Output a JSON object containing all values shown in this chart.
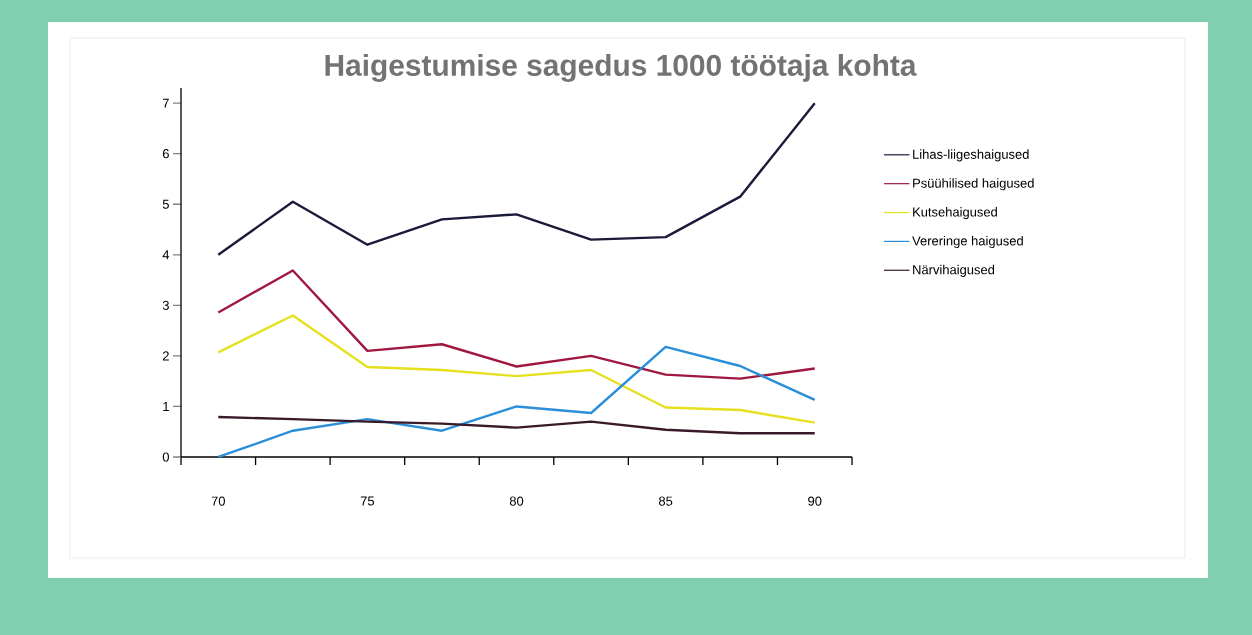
{
  "chart_data": {
    "type": "line",
    "title": "Haigestumise sagedus 1000 töötaja kohta",
    "x": [
      70,
      72.5,
      75,
      77.5,
      80,
      82.5,
      85,
      87.5,
      90
    ],
    "xlim": [
      68.75,
      91.25
    ],
    "xticks": [
      {
        "value": 68.75,
        "label": null
      },
      70,
      {
        "value": 71.25,
        "label": null
      },
      {
        "value": 73.75,
        "label": null
      },
      75,
      {
        "value": 76.25,
        "label": null
      },
      {
        "value": 78.75,
        "label": null
      },
      80,
      {
        "value": 81.25,
        "label": null
      },
      {
        "value": 83.75,
        "label": null
      },
      85,
      {
        "value": 86.25,
        "label": null
      },
      {
        "value": 88.75,
        "label": null
      },
      90,
      {
        "value": 91.25,
        "label": null
      }
    ],
    "ylim": [
      0,
      7.3
    ],
    "yticks": [
      0,
      1,
      2,
      3,
      4,
      5,
      6,
      7
    ],
    "legend": "right",
    "grid": false,
    "marker": "none",
    "line_style": "solid",
    "series": [
      {
        "name": "Lihas-liigeshaigused",
        "color": "#1a1a3a",
        "values": [
          4.0,
          5.05,
          4.2,
          4.7,
          4.8,
          4.3,
          4.35,
          5.15,
          7.0
        ]
      },
      {
        "name": "Psüühilised haigused",
        "color": "#a0183f",
        "values": [
          2.86,
          3.69,
          2.1,
          2.23,
          1.79,
          2.0,
          1.63,
          1.55,
          1.75
        ]
      },
      {
        "name": "Kutsehaigused",
        "color": "#e6e01e",
        "values": [
          2.07,
          2.8,
          1.78,
          1.72,
          1.6,
          1.72,
          0.98,
          0.93,
          0.68
        ]
      },
      {
        "name": "Vereringe haigused",
        "color": "#2a8fd8",
        "values": [
          0,
          0.52,
          0.75,
          0.52,
          1.0,
          0.87,
          2.18,
          1.8,
          1.13
        ]
      },
      {
        "name": "Närvihaigused",
        "color": "#3a1a2a",
        "values": [
          0.79,
          0.75,
          0.7,
          0.66,
          0.58,
          0.7,
          0.54,
          0.47,
          0.47
        ]
      }
    ]
  }
}
